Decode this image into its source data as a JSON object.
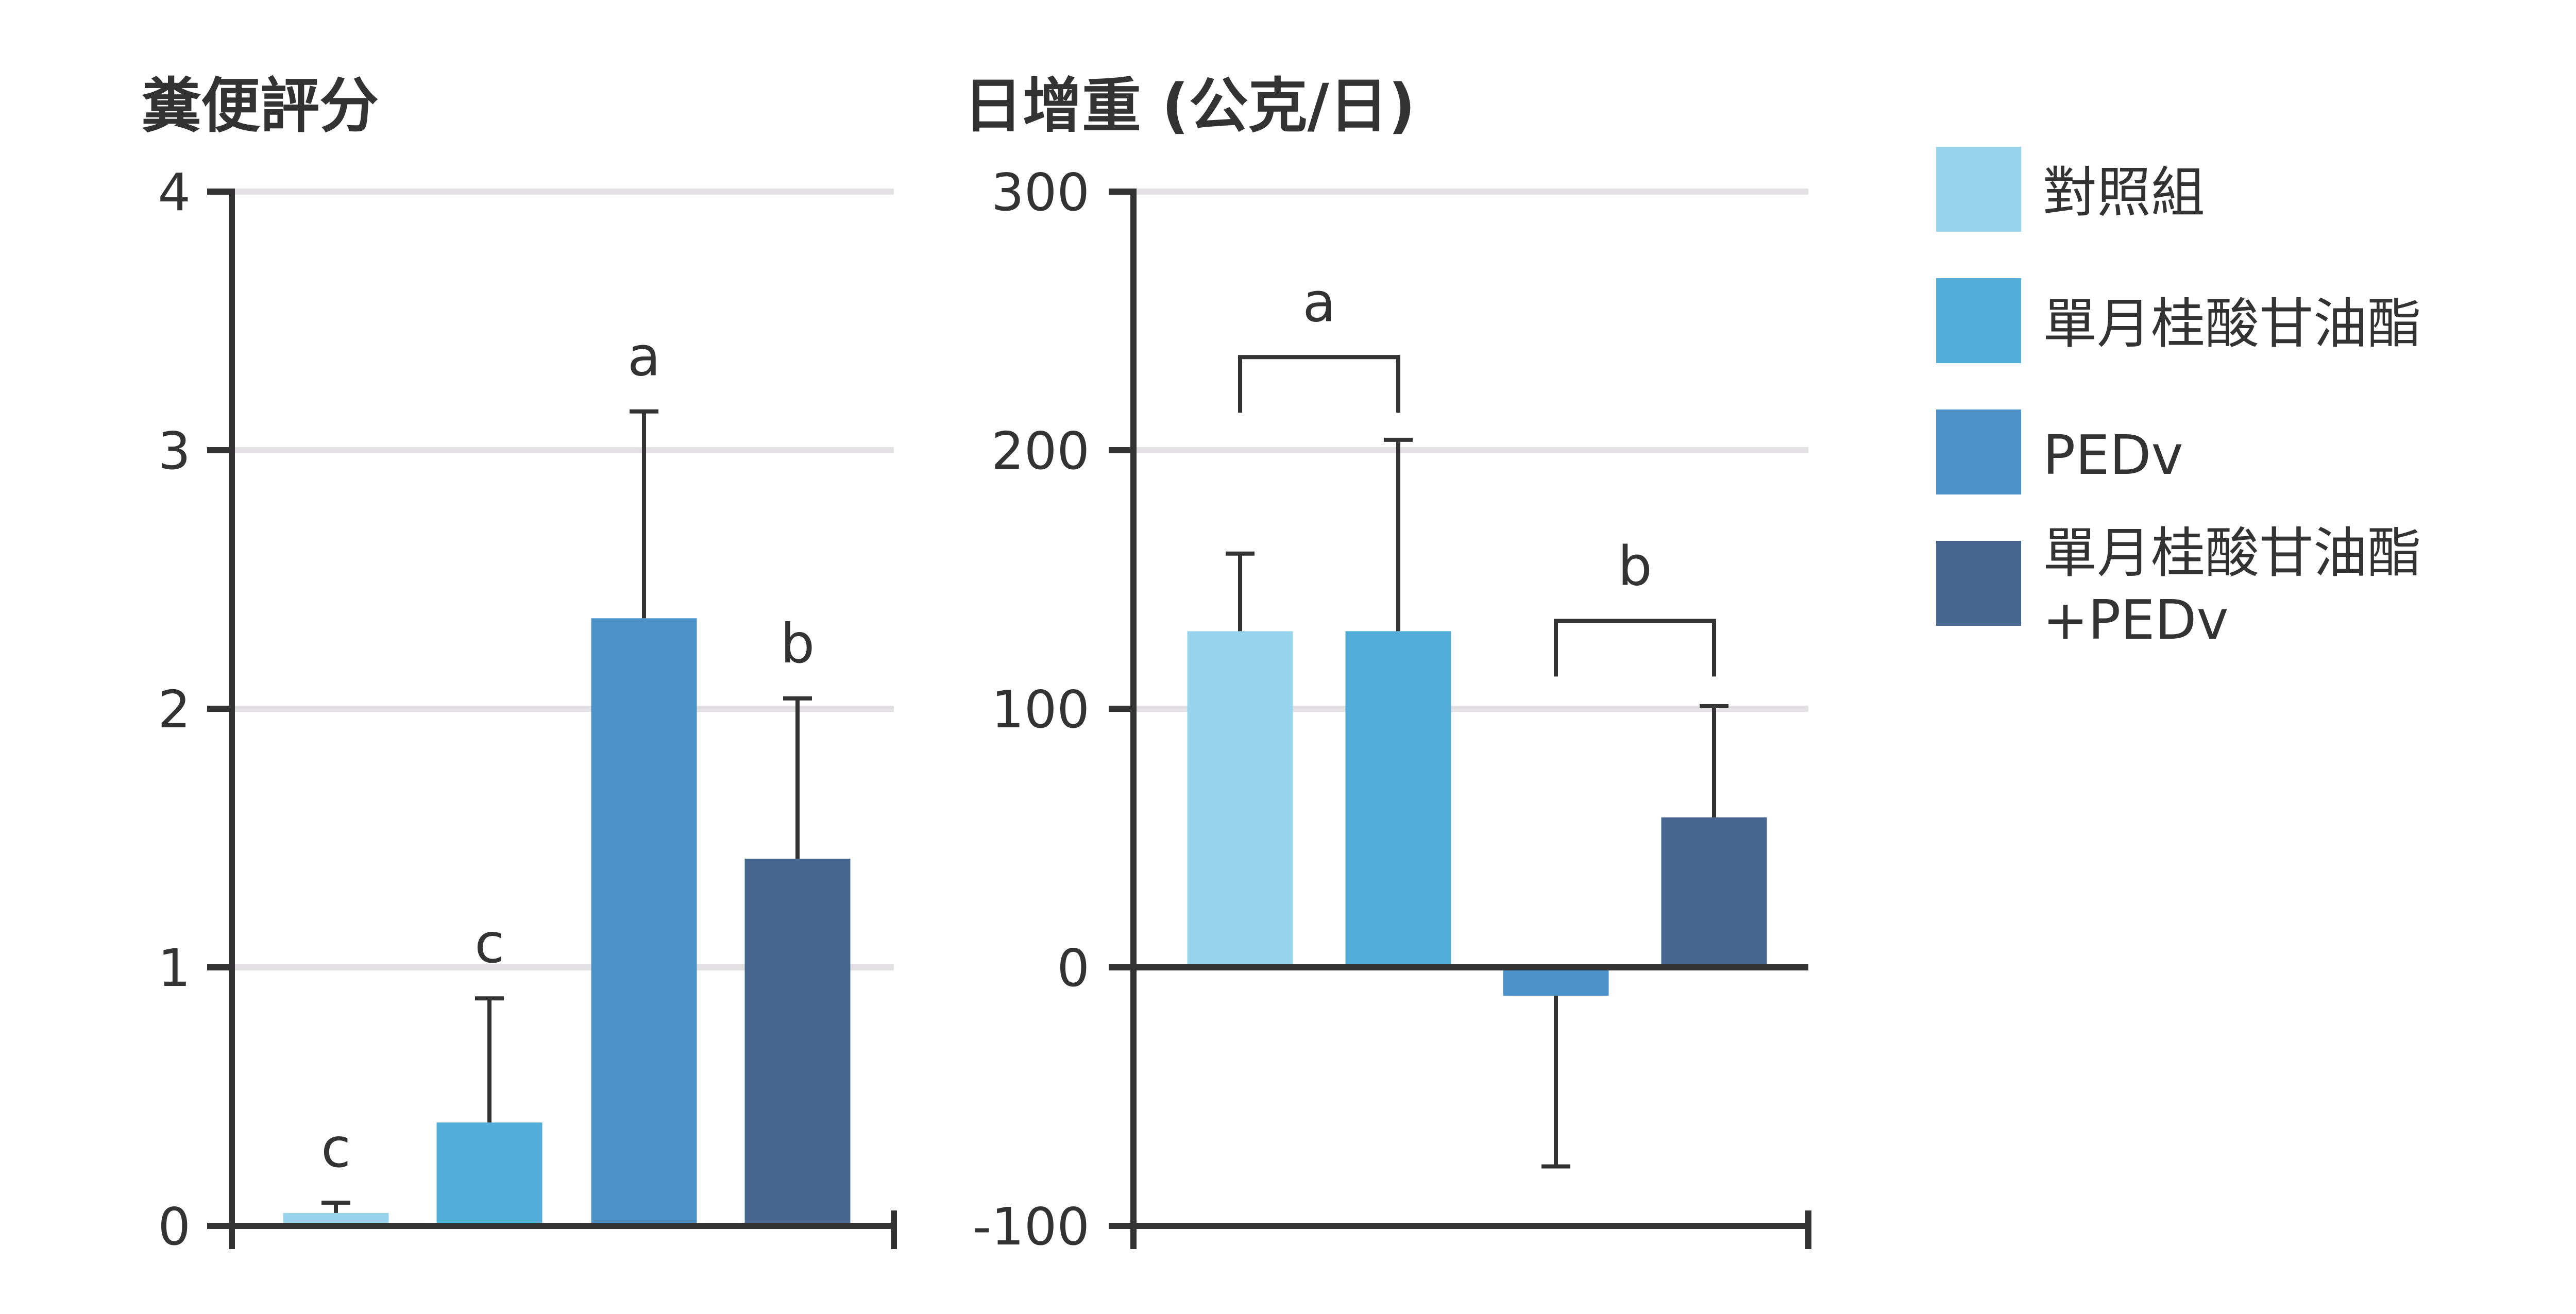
{
  "colors": {
    "control": "#99d4ed",
    "monolaurin": "#52aed9",
    "pedv": "#4c93c9",
    "monolaurin_pedv": "#46668f",
    "axis": "#333333",
    "grid": "#e3e1e3",
    "text": "#333333"
  },
  "legend": {
    "items": [
      {
        "label": "對照組",
        "color": "#99d4ed"
      },
      {
        "label": "單月桂酸甘油酯",
        "color": "#52aed9"
      },
      {
        "label": "PEDv",
        "color": "#4c93c9"
      },
      {
        "label_line1": "單月桂酸甘油酯",
        "label_line2": "+PEDv",
        "color": "#46668f"
      }
    ]
  },
  "chart_data": [
    {
      "type": "bar",
      "title": "糞便評分",
      "ylim": [
        0,
        4
      ],
      "yticks": [
        "0",
        "1",
        "2",
        "3",
        "4"
      ],
      "grid": true,
      "categories": [
        "對照組",
        "單月桂酸甘油酯",
        "PEDv",
        "單月桂酸甘油酯+PEDv"
      ],
      "values": [
        0.05,
        0.4,
        2.35,
        1.42
      ],
      "errors": [
        0.04,
        0.48,
        0.8,
        0.62
      ],
      "letters": [
        "c",
        "c",
        "a",
        "b"
      ]
    },
    {
      "type": "bar",
      "title": "日增重 (公克/日)",
      "ylim": [
        -100,
        300
      ],
      "yticks": [
        "-100",
        "0",
        "100",
        "200",
        "300"
      ],
      "grid": true,
      "categories": [
        "對照組",
        "單月桂酸甘油酯",
        "PEDv",
        "單月桂酸甘油酯+PEDv"
      ],
      "values": [
        130,
        130,
        -11,
        58
      ],
      "errors": [
        30,
        74,
        66,
        43
      ],
      "brackets": [
        {
          "from": 0,
          "to": 1,
          "value": 236,
          "letter": "a"
        },
        {
          "from": 2,
          "to": 3,
          "value": 134,
          "letter": "b"
        }
      ]
    }
  ]
}
